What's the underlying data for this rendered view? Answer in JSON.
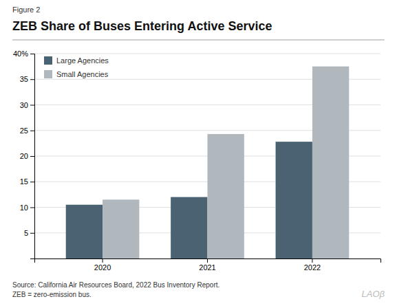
{
  "chart_data": {
    "type": "bar",
    "title": "ZEB Share of Buses Entering Active Service",
    "annotations": [
      "Figure 2",
      "Source: California Air Resources Board, 2022 Bus Inventory Report.",
      "ZEB = zero-emission bus.",
      "LAOβ"
    ],
    "categories": [
      "2020",
      "2021",
      "2022"
    ],
    "series": [
      {
        "name": "Large Agencies",
        "color": "#4a6272",
        "values": [
          10.5,
          12.0,
          22.8
        ]
      },
      {
        "name": "Small Agencies",
        "color": "#b0b8be",
        "values": [
          11.5,
          24.3,
          37.5
        ]
      }
    ],
    "ylim": [
      0,
      40
    ],
    "yticks": [
      5,
      10,
      15,
      20,
      25,
      30,
      35,
      {
        "value": 40,
        "label": "40%"
      }
    ],
    "grid": true,
    "legend": "upper left"
  }
}
